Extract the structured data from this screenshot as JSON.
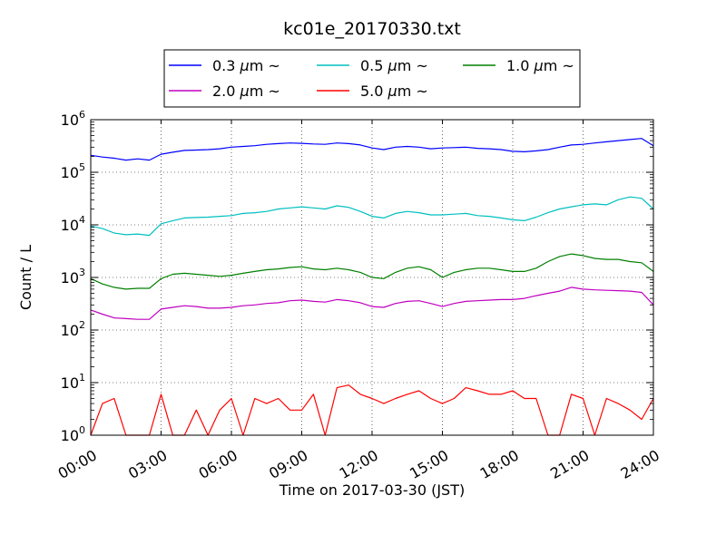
{
  "chart_data": {
    "type": "line",
    "title": "kc01e_20170330.txt",
    "xlabel": "Time on 2017-03-30 (JST)",
    "ylabel": "Count / L",
    "yscale": "log",
    "ylim": [
      1,
      1000000
    ],
    "xlim": [
      "00:00",
      "24:00"
    ],
    "x_tick_labels": [
      "00:00",
      "03:00",
      "06:00",
      "09:00",
      "12:00",
      "15:00",
      "18:00",
      "21:00",
      "24:00"
    ],
    "y_tick_labels": [
      {
        "base": "10",
        "exp": "0",
        "value": 1
      },
      {
        "base": "10",
        "exp": "1",
        "value": 10
      },
      {
        "base": "10",
        "exp": "2",
        "value": 100
      },
      {
        "base": "10",
        "exp": "3",
        "value": 1000
      },
      {
        "base": "10",
        "exp": "4",
        "value": 10000
      },
      {
        "base": "10",
        "exp": "5",
        "value": 100000
      },
      {
        "base": "10",
        "exp": "6",
        "value": 1000000
      }
    ],
    "grid": true,
    "legend_position": "top-center, above plot",
    "legend_tilde": "~",
    "x_hours": [
      0,
      0.5,
      1,
      1.5,
      2,
      2.5,
      3,
      3.5,
      4,
      4.5,
      5,
      5.5,
      6,
      6.5,
      7,
      7.5,
      8,
      8.5,
      9,
      9.5,
      10,
      10.5,
      11,
      11.5,
      12,
      12.5,
      13,
      13.5,
      14,
      14.5,
      15,
      15.5,
      16,
      16.5,
      17,
      17.5,
      18,
      18.5,
      19,
      19.5,
      20,
      20.5,
      21,
      21.5,
      22,
      22.5,
      23,
      23.5,
      24
    ],
    "series": [
      {
        "name": "0.3",
        "color": "#0000ff",
        "values": [
          210000,
          195000,
          185000,
          170000,
          180000,
          170000,
          220000,
          240000,
          260000,
          265000,
          270000,
          280000,
          300000,
          310000,
          320000,
          340000,
          350000,
          360000,
          355000,
          345000,
          340000,
          360000,
          350000,
          330000,
          290000,
          270000,
          300000,
          310000,
          300000,
          280000,
          290000,
          295000,
          300000,
          285000,
          280000,
          270000,
          250000,
          245000,
          255000,
          270000,
          300000,
          330000,
          340000,
          360000,
          380000,
          400000,
          420000,
          440000,
          320000
        ]
      },
      {
        "name": "0.5",
        "color": "#00bfbf",
        "values": [
          9500,
          8500,
          7000,
          6500,
          6700,
          6300,
          10500,
          12000,
          13500,
          13800,
          14000,
          14500,
          15000,
          16500,
          17000,
          18000,
          20000,
          21000,
          22000,
          21000,
          20000,
          23000,
          21500,
          18000,
          14500,
          13500,
          16500,
          18000,
          17000,
          15500,
          15500,
          16000,
          16500,
          15000,
          14500,
          13500,
          12500,
          12000,
          14000,
          17000,
          20000,
          22000,
          24000,
          25000,
          24000,
          30000,
          34000,
          32000,
          20000
        ]
      },
      {
        "name": "1.0",
        "color": "#008000",
        "values": [
          950,
          750,
          650,
          600,
          620,
          620,
          950,
          1150,
          1200,
          1150,
          1100,
          1050,
          1100,
          1200,
          1300,
          1400,
          1450,
          1550,
          1600,
          1450,
          1400,
          1500,
          1400,
          1250,
          1000,
          950,
          1250,
          1500,
          1600,
          1400,
          1000,
          1250,
          1400,
          1500,
          1500,
          1400,
          1300,
          1300,
          1500,
          2000,
          2500,
          2800,
          2600,
          2300,
          2200,
          2200,
          2000,
          1900,
          1300
        ]
      },
      {
        "name": "2.0",
        "color": "#bf00bf",
        "values": [
          240,
          200,
          170,
          165,
          160,
          160,
          250,
          270,
          290,
          280,
          260,
          260,
          270,
          290,
          300,
          320,
          330,
          360,
          370,
          350,
          340,
          380,
          360,
          330,
          280,
          270,
          320,
          350,
          360,
          320,
          280,
          320,
          350,
          360,
          370,
          380,
          380,
          400,
          450,
          500,
          550,
          650,
          600,
          580,
          570,
          560,
          550,
          520,
          300
        ]
      },
      {
        "name": "5.0",
        "color": "#ff0000",
        "values": [
          1,
          4,
          5,
          1,
          1,
          1,
          6,
          1,
          1,
          3,
          1,
          3,
          5,
          1,
          5,
          4,
          5,
          3,
          3,
          6,
          1,
          8,
          9,
          6,
          5,
          4,
          5,
          6,
          7,
          5,
          4,
          5,
          8,
          7,
          6,
          6,
          7,
          5,
          5,
          1,
          1,
          6,
          5,
          1,
          5,
          4,
          3,
          2,
          5
        ]
      }
    ]
  }
}
